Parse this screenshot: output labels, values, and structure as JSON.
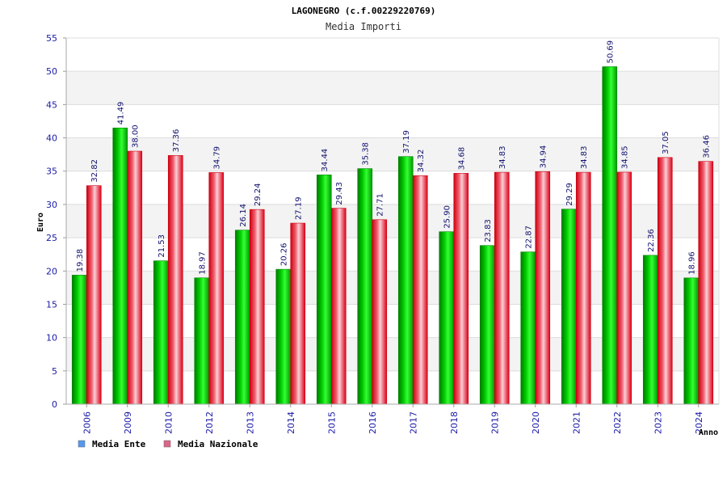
{
  "chart_data": {
    "type": "bar",
    "title": "LAGONEGRO (c.f.00229220769)",
    "subtitle": "Media Importi",
    "xlabel": "Anno",
    "ylabel": "Euro",
    "ylim": [
      0,
      55
    ],
    "yticks": [
      0,
      5,
      10,
      15,
      20,
      25,
      30,
      35,
      40,
      45,
      50,
      55
    ],
    "grid": true,
    "legend_position": "bottom-left",
    "categories": [
      "2006",
      "2009",
      "2010",
      "2012",
      "2013",
      "2014",
      "2015",
      "2016",
      "2017",
      "2018",
      "2019",
      "2020",
      "2021",
      "2022",
      "2023",
      "2024"
    ],
    "series": [
      {
        "name": "Media Ente",
        "color": "#00b000",
        "legend_color": "#5599ee",
        "values": [
          19.38,
          41.49,
          21.53,
          18.97,
          26.14,
          20.26,
          34.44,
          35.38,
          37.19,
          25.9,
          23.83,
          22.87,
          29.29,
          50.69,
          22.36,
          18.96
        ],
        "labels": [
          "19.38",
          "41.49",
          "21.53",
          "18.97",
          "26.14",
          "20.26",
          "34.44",
          "35.38",
          "37.19",
          "25.90",
          "23.83",
          "22.87",
          "29.29",
          "50.69",
          "22.36",
          "18.96"
        ]
      },
      {
        "name": "Media Nazionale",
        "color": "#e01020",
        "legend_color": "#dd6688",
        "values": [
          32.82,
          38.0,
          37.36,
          34.79,
          29.24,
          27.19,
          29.43,
          27.71,
          34.32,
          34.68,
          34.83,
          34.94,
          34.83,
          34.85,
          37.05,
          36.46
        ],
        "labels": [
          "32.82",
          "38.00",
          "37.36",
          "34.79",
          "29.24",
          "27.19",
          "29.43",
          "27.71",
          "34.32",
          "34.68",
          "34.83",
          "34.94",
          "34.83",
          "34.85",
          "37.05",
          "36.46"
        ]
      }
    ]
  }
}
